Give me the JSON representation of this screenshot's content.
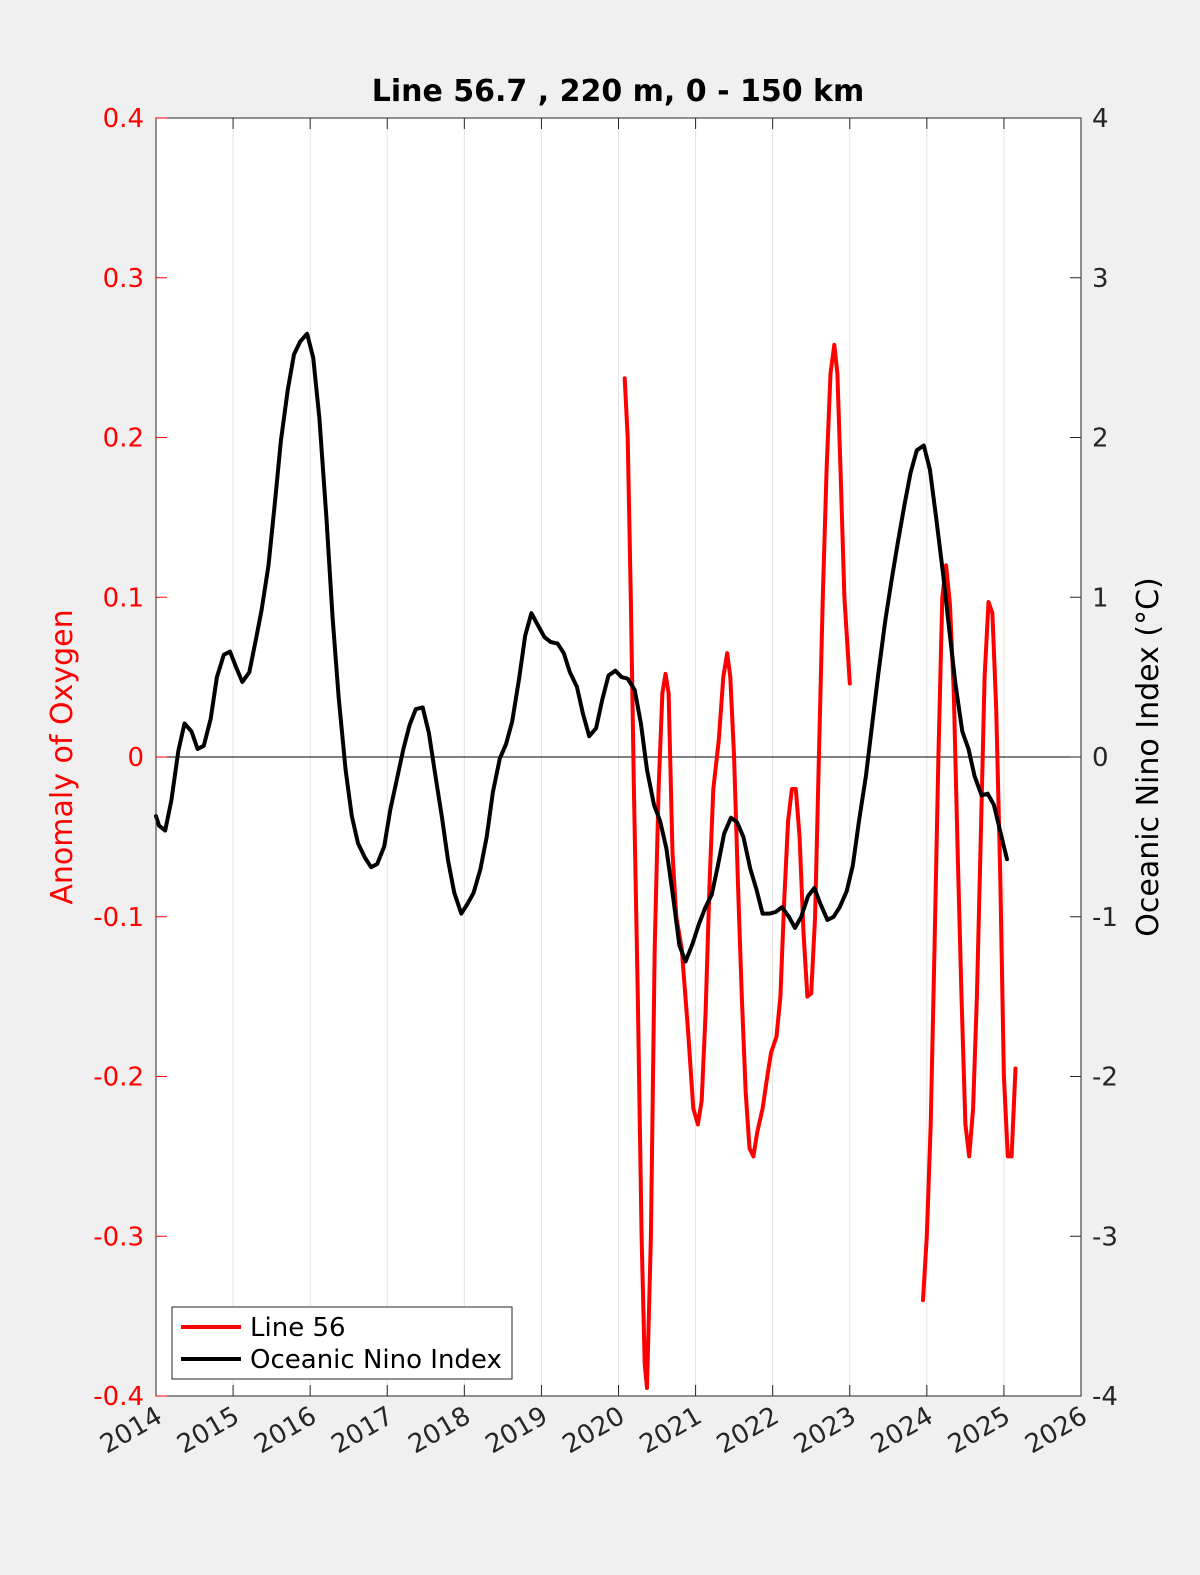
{
  "chart_data": {
    "type": "line",
    "title": "Line 56.7 , 220 m, 0 - 150 km",
    "xlabel": "",
    "ylabel": "Anomaly of Oxygen",
    "y2label": "Oceanic Nino Index (°C)",
    "xlim": [
      2014,
      2026
    ],
    "ylim": [
      -0.4,
      0.4
    ],
    "y2lim": [
      -4,
      4
    ],
    "x_ticks": [
      2014,
      2015,
      2016,
      2017,
      2018,
      2019,
      2020,
      2021,
      2022,
      2023,
      2024,
      2025,
      2026
    ],
    "x_tick_labels": [
      "2014",
      "2015",
      "2016",
      "2017",
      "2018",
      "2019",
      "2020",
      "2021",
      "2022",
      "2023",
      "2024",
      "2025",
      "2026"
    ],
    "y_ticks": [
      -0.4,
      -0.3,
      -0.2,
      -0.1,
      0,
      0.1,
      0.2,
      0.3,
      0.4
    ],
    "y_tick_labels": [
      "-0.4",
      "-0.3",
      "-0.2",
      "-0.1",
      "0",
      "0.1",
      "0.2",
      "0.3",
      "0.4"
    ],
    "y2_ticks": [
      -4,
      -3,
      -2,
      -1,
      0,
      1,
      2,
      3,
      4
    ],
    "y2_tick_labels": [
      "-4",
      "-3",
      "-2",
      "-1",
      "0",
      "1",
      "2",
      "3",
      "4"
    ],
    "grid": "vertical",
    "zero_line": true,
    "legend_position": "bottom-left",
    "colors": {
      "line56": "#ff0000",
      "oni": "#000000",
      "left_axis": "#ff0000",
      "right_axis": "#000000"
    },
    "series": [
      {
        "name": "Line 56",
        "axis": "left",
        "color": "#ff0000",
        "segments": [
          [
            [
              2020.08,
              0.237
            ],
            [
              2020.12,
              0.2
            ],
            [
              2020.16,
              0.1
            ],
            [
              2020.2,
              -0.02
            ],
            [
              2020.25,
              -0.15
            ],
            [
              2020.3,
              -0.3
            ],
            [
              2020.34,
              -0.38
            ],
            [
              2020.37,
              -0.395
            ],
            [
              2020.42,
              -0.3
            ],
            [
              2020.47,
              -0.12
            ],
            [
              2020.52,
              -0.02
            ],
            [
              2020.57,
              0.04
            ],
            [
              2020.61,
              0.052
            ],
            [
              2020.65,
              0.04
            ],
            [
              2020.7,
              -0.06
            ],
            [
              2020.75,
              -0.1
            ],
            [
              2020.82,
              -0.12
            ],
            [
              2020.9,
              -0.17
            ],
            [
              2020.97,
              -0.22
            ],
            [
              2021.03,
              -0.23
            ],
            [
              2021.08,
              -0.215
            ],
            [
              2021.13,
              -0.16
            ],
            [
              2021.18,
              -0.08
            ],
            [
              2021.23,
              -0.02
            ],
            [
              2021.3,
              0.01
            ],
            [
              2021.36,
              0.05
            ],
            [
              2021.41,
              0.065
            ],
            [
              2021.45,
              0.05
            ],
            [
              2021.5,
              0.0
            ],
            [
              2021.55,
              -0.08
            ],
            [
              2021.6,
              -0.15
            ],
            [
              2021.65,
              -0.21
            ],
            [
              2021.7,
              -0.245
            ],
            [
              2021.75,
              -0.25
            ],
            [
              2021.8,
              -0.235
            ],
            [
              2021.87,
              -0.22
            ],
            [
              2021.93,
              -0.2
            ],
            [
              2021.98,
              -0.185
            ],
            [
              2022.05,
              -0.175
            ],
            [
              2022.1,
              -0.15
            ],
            [
              2022.15,
              -0.09
            ],
            [
              2022.2,
              -0.04
            ],
            [
              2022.25,
              -0.02
            ],
            [
              2022.3,
              -0.02
            ],
            [
              2022.35,
              -0.05
            ],
            [
              2022.4,
              -0.11
            ],
            [
              2022.45,
              -0.15
            ],
            [
              2022.5,
              -0.148
            ],
            [
              2022.55,
              -0.1
            ],
            [
              2022.6,
              0.0
            ],
            [
              2022.65,
              0.1
            ],
            [
              2022.7,
              0.18
            ],
            [
              2022.75,
              0.24
            ],
            [
              2022.8,
              0.258
            ],
            [
              2022.84,
              0.24
            ],
            [
              2022.88,
              0.18
            ],
            [
              2022.93,
              0.1
            ],
            [
              2023.0,
              0.046
            ]
          ],
          [
            [
              2023.95,
              -0.34
            ],
            [
              2024.0,
              -0.3
            ],
            [
              2024.05,
              -0.23
            ],
            [
              2024.1,
              -0.12
            ],
            [
              2024.15,
              0.0
            ],
            [
              2024.2,
              0.1
            ],
            [
              2024.25,
              0.12
            ],
            [
              2024.3,
              0.095
            ],
            [
              2024.35,
              0.04
            ],
            [
              2024.4,
              -0.06
            ],
            [
              2024.45,
              -0.15
            ],
            [
              2024.5,
              -0.23
            ],
            [
              2024.55,
              -0.25
            ],
            [
              2024.6,
              -0.22
            ],
            [
              2024.65,
              -0.15
            ],
            [
              2024.7,
              -0.05
            ],
            [
              2024.75,
              0.05
            ],
            [
              2024.8,
              0.097
            ],
            [
              2024.85,
              0.09
            ],
            [
              2024.9,
              0.03
            ],
            [
              2024.95,
              -0.07
            ],
            [
              2025.0,
              -0.2
            ],
            [
              2025.05,
              -0.25
            ],
            [
              2025.1,
              -0.25
            ],
            [
              2025.15,
              -0.195
            ]
          ]
        ]
      },
      {
        "name": "Oceanic Nino Index",
        "axis": "right",
        "color": "#000000",
        "segments": [
          [
            [
              2014.0,
              -0.37
            ],
            [
              2014.04,
              -0.43
            ],
            [
              2014.12,
              -0.46
            ],
            [
              2014.2,
              -0.27
            ],
            [
              2014.29,
              0.04
            ],
            [
              2014.37,
              0.21
            ],
            [
              2014.46,
              0.16
            ],
            [
              2014.54,
              0.05
            ],
            [
              2014.62,
              0.07
            ],
            [
              2014.71,
              0.24
            ],
            [
              2014.79,
              0.5
            ],
            [
              2014.88,
              0.64
            ],
            [
              2014.96,
              0.66
            ],
            [
              2015.04,
              0.56
            ],
            [
              2015.12,
              0.47
            ],
            [
              2015.21,
              0.53
            ],
            [
              2015.29,
              0.72
            ],
            [
              2015.37,
              0.92
            ],
            [
              2015.46,
              1.2
            ],
            [
              2015.54,
              1.58
            ],
            [
              2015.62,
              1.98
            ],
            [
              2015.71,
              2.3
            ],
            [
              2015.79,
              2.52
            ],
            [
              2015.87,
              2.6
            ],
            [
              2015.96,
              2.65
            ],
            [
              2016.04,
              2.5
            ],
            [
              2016.12,
              2.12
            ],
            [
              2016.21,
              1.5
            ],
            [
              2016.29,
              0.88
            ],
            [
              2016.37,
              0.37
            ],
            [
              2016.46,
              -0.08
            ],
            [
              2016.54,
              -0.37
            ],
            [
              2016.62,
              -0.54
            ],
            [
              2016.71,
              -0.63
            ],
            [
              2016.79,
              -0.69
            ],
            [
              2016.87,
              -0.67
            ],
            [
              2016.96,
              -0.56
            ],
            [
              2017.04,
              -0.33
            ],
            [
              2017.12,
              -0.15
            ],
            [
              2017.21,
              0.05
            ],
            [
              2017.29,
              0.2
            ],
            [
              2017.37,
              0.3
            ],
            [
              2017.46,
              0.31
            ],
            [
              2017.54,
              0.15
            ],
            [
              2017.62,
              -0.1
            ],
            [
              2017.71,
              -0.38
            ],
            [
              2017.79,
              -0.65
            ],
            [
              2017.87,
              -0.85
            ],
            [
              2017.96,
              -0.98
            ],
            [
              2018.04,
              -0.92
            ],
            [
              2018.12,
              -0.85
            ],
            [
              2018.21,
              -0.7
            ],
            [
              2018.29,
              -0.5
            ],
            [
              2018.37,
              -0.22
            ],
            [
              2018.46,
              -0.01
            ],
            [
              2018.54,
              0.08
            ],
            [
              2018.62,
              0.22
            ],
            [
              2018.71,
              0.49
            ],
            [
              2018.79,
              0.76
            ],
            [
              2018.87,
              0.9
            ],
            [
              2018.96,
              0.82
            ],
            [
              2019.04,
              0.75
            ],
            [
              2019.12,
              0.72
            ],
            [
              2019.21,
              0.71
            ],
            [
              2019.29,
              0.65
            ],
            [
              2019.37,
              0.53
            ],
            [
              2019.46,
              0.44
            ],
            [
              2019.54,
              0.27
            ],
            [
              2019.62,
              0.13
            ],
            [
              2019.71,
              0.18
            ],
            [
              2019.79,
              0.36
            ],
            [
              2019.87,
              0.51
            ],
            [
              2019.96,
              0.54
            ],
            [
              2020.04,
              0.5
            ],
            [
              2020.12,
              0.49
            ],
            [
              2020.21,
              0.42
            ],
            [
              2020.29,
              0.21
            ],
            [
              2020.37,
              -0.08
            ],
            [
              2020.46,
              -0.3
            ],
            [
              2020.54,
              -0.4
            ],
            [
              2020.62,
              -0.57
            ],
            [
              2020.71,
              -0.88
            ],
            [
              2020.79,
              -1.18
            ],
            [
              2020.87,
              -1.28
            ],
            [
              2020.96,
              -1.17
            ],
            [
              2021.04,
              -1.05
            ],
            [
              2021.12,
              -0.95
            ],
            [
              2021.21,
              -0.86
            ],
            [
              2021.29,
              -0.68
            ],
            [
              2021.37,
              -0.48
            ],
            [
              2021.46,
              -0.38
            ],
            [
              2021.54,
              -0.41
            ],
            [
              2021.62,
              -0.5
            ],
            [
              2021.71,
              -0.7
            ],
            [
              2021.79,
              -0.83
            ],
            [
              2021.87,
              -0.98
            ],
            [
              2021.96,
              -0.98
            ],
            [
              2022.04,
              -0.97
            ],
            [
              2022.12,
              -0.94
            ],
            [
              2022.21,
              -1.0
            ],
            [
              2022.29,
              -1.07
            ],
            [
              2022.37,
              -1.0
            ],
            [
              2022.46,
              -0.87
            ],
            [
              2022.54,
              -0.82
            ],
            [
              2022.62,
              -0.92
            ],
            [
              2022.71,
              -1.02
            ],
            [
              2022.79,
              -1.0
            ],
            [
              2022.87,
              -0.94
            ],
            [
              2022.96,
              -0.84
            ],
            [
              2023.04,
              -0.68
            ],
            [
              2023.12,
              -0.4
            ],
            [
              2023.21,
              -0.12
            ],
            [
              2023.29,
              0.2
            ],
            [
              2023.37,
              0.52
            ],
            [
              2023.46,
              0.85
            ],
            [
              2023.54,
              1.1
            ],
            [
              2023.62,
              1.33
            ],
            [
              2023.71,
              1.58
            ],
            [
              2023.79,
              1.78
            ],
            [
              2023.87,
              1.92
            ],
            [
              2023.96,
              1.95
            ],
            [
              2024.04,
              1.8
            ],
            [
              2024.12,
              1.5
            ],
            [
              2024.21,
              1.15
            ],
            [
              2024.29,
              0.8
            ],
            [
              2024.37,
              0.46
            ],
            [
              2024.46,
              0.16
            ],
            [
              2024.54,
              0.05
            ],
            [
              2024.62,
              -0.12
            ],
            [
              2024.71,
              -0.24
            ],
            [
              2024.79,
              -0.23
            ],
            [
              2024.87,
              -0.3
            ],
            [
              2024.96,
              -0.48
            ],
            [
              2025.04,
              -0.64
            ]
          ]
        ]
      }
    ]
  }
}
